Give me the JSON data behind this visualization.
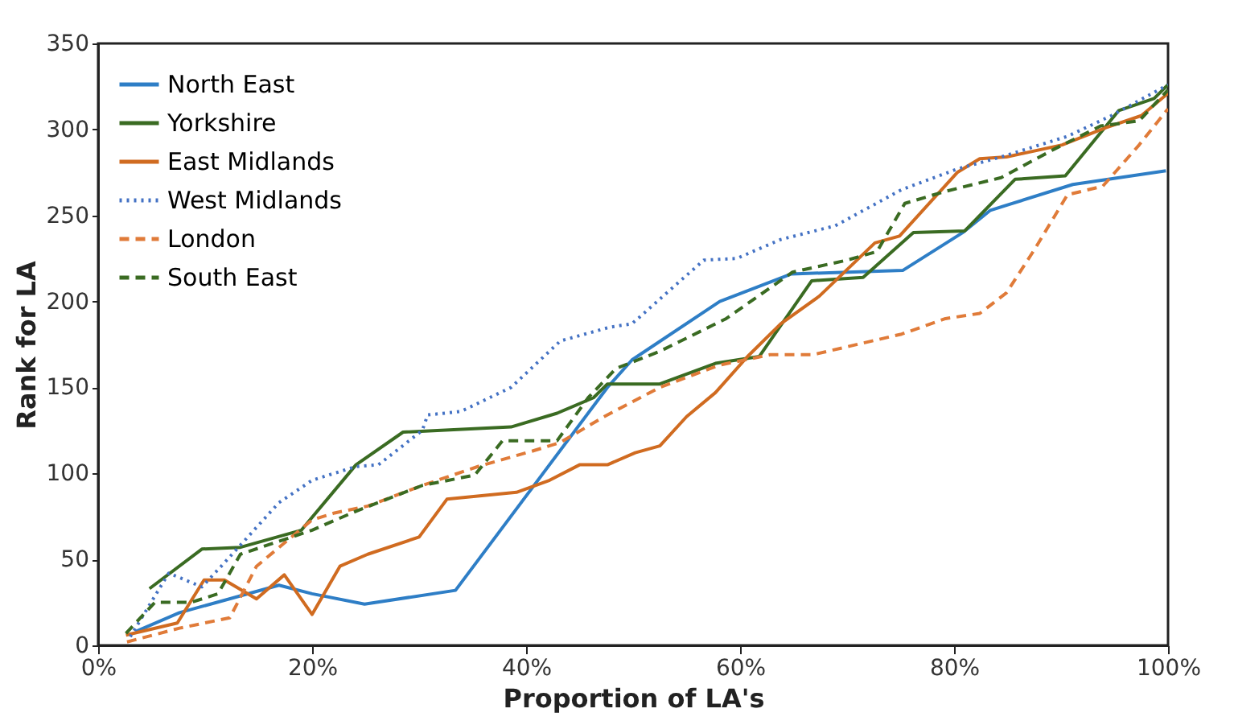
{
  "chart_data": {
    "type": "line",
    "xlabel": "Proportion of LA's",
    "ylabel": "Rank for LA",
    "xlim": [
      0,
      100
    ],
    "xticks": [
      {
        "value": 0,
        "label": "0%"
      },
      {
        "value": 20,
        "label": "20%"
      },
      {
        "value": 40,
        "label": "40%"
      },
      {
        "value": 60,
        "label": "60%"
      },
      {
        "value": 80,
        "label": "80%"
      },
      {
        "value": 100,
        "label": "100%"
      }
    ],
    "ylim": [
      0,
      350
    ],
    "yticks": [
      0,
      50,
      100,
      150,
      200,
      250,
      300,
      350
    ],
    "grid": false,
    "legend": "top left",
    "series": [
      {
        "name": "North East",
        "color": "#2e7ec6",
        "line_style": "solid",
        "x": [
          3.5,
          7.6,
          16.9,
          20,
          24.9,
          33.4,
          47.6,
          49.9,
          58.1,
          64.8,
          75.2,
          80.8,
          83.4,
          91.1,
          99.8
        ],
        "values": [
          8,
          19,
          35,
          30,
          24,
          32,
          150,
          166,
          200,
          216,
          218,
          240,
          253,
          268,
          276
        ]
      },
      {
        "name": "Yorkshire",
        "color": "#3a6b22",
        "line_style": "solid",
        "x": [
          4.8,
          9.7,
          13.3,
          19,
          24.1,
          28.5,
          38.6,
          42.9,
          46.3,
          47.6,
          52.5,
          57.7,
          61.8,
          66.7,
          71.5,
          76.2,
          81,
          85.7,
          90.4,
          95.4,
          98.7,
          100
        ],
        "values": [
          33,
          56,
          57,
          67,
          105,
          124,
          127,
          135,
          144,
          152,
          152,
          164,
          168,
          212,
          214,
          240,
          241,
          271,
          273,
          311,
          318,
          326
        ]
      },
      {
        "name": "East Midlands",
        "color": "#d06b20",
        "line_style": "solid",
        "x": [
          2.6,
          7.4,
          9.9,
          11.8,
          14.8,
          17.4,
          20,
          22.6,
          25.2,
          30,
          32.6,
          39.1,
          42.2,
          45,
          47.6,
          50.2,
          52.5,
          55,
          57.7,
          60.7,
          63.8,
          67.4,
          72.6,
          74.9,
          80.3,
          82.4,
          84.9,
          90.1,
          94.2,
          97.5,
          100
        ],
        "values": [
          6,
          13,
          38,
          38,
          27,
          41,
          18,
          46,
          53,
          63,
          85,
          89,
          96,
          105,
          105,
          112,
          116,
          133,
          147,
          168,
          187,
          203,
          234,
          238,
          275,
          283,
          284,
          291,
          301,
          308,
          321
        ]
      },
      {
        "name": "West Midlands",
        "color": "#4472c4",
        "line_style": "dotted",
        "x": [
          3,
          6.6,
          9.7,
          11.8,
          16.9,
          20,
          24.1,
          26.2,
          30.3,
          30.8,
          33.9,
          38.6,
          43.2,
          47.8,
          49.9,
          56.6,
          59.7,
          63.8,
          68.9,
          75.1,
          80.3,
          84.4,
          90.6,
          94.7,
          100
        ],
        "values": [
          5,
          42,
          34,
          48,
          83,
          96,
          104,
          105,
          125,
          134,
          136,
          150,
          177,
          185,
          187,
          224,
          225,
          236,
          244,
          265,
          277,
          284,
          296,
          308,
          326
        ]
      },
      {
        "name": "London",
        "color": "#e07b39",
        "line_style": "dashed",
        "x": [
          2.7,
          7.6,
          12.3,
          14.8,
          20,
          22.1,
          25.2,
          30.3,
          35.5,
          40.6,
          43.2,
          47.3,
          52.5,
          58.1,
          62.8,
          66.8,
          75.1,
          79.2,
          82.4,
          84.9,
          87.5,
          90.6,
          93.9,
          97.3,
          100
        ],
        "values": [
          2,
          10,
          16,
          46,
          73,
          77,
          81,
          93,
          104,
          113,
          118,
          133,
          150,
          163,
          169,
          169,
          181,
          190,
          193,
          205,
          230,
          262,
          267,
          291,
          312
        ]
      },
      {
        "name": "South East",
        "color": "#3a6b22",
        "line_style": "dashed",
        "x": [
          2.6,
          5.3,
          8.7,
          11.2,
          13.3,
          20,
          24.1,
          30.3,
          35.2,
          37.8,
          42.9,
          45.8,
          48.4,
          52.5,
          58.7,
          64.9,
          70,
          72.8,
          75.4,
          79.2,
          84.4,
          89.5,
          93.7,
          97.3,
          100
        ],
        "values": [
          7,
          25,
          25,
          30,
          53,
          67,
          78,
          93,
          99,
          119,
          119,
          144,
          161,
          171,
          190,
          217,
          224,
          229,
          257,
          264,
          272,
          289,
          302,
          305,
          323
        ]
      }
    ]
  }
}
